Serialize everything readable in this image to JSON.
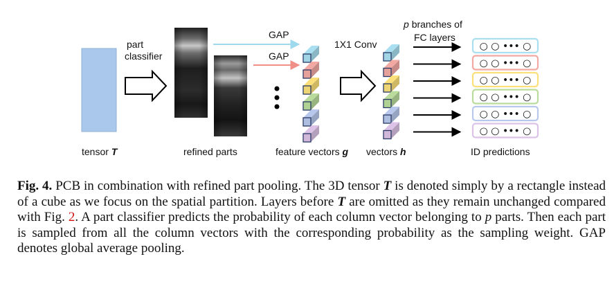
{
  "figure": {
    "label_tensor": "tensor",
    "label_tensor_sym": "T",
    "label_part_classifier_1": "part",
    "label_part_classifier_2": "classifier",
    "label_refined_parts": "refined parts",
    "label_gap_top": "GAP",
    "label_gap_second": "GAP",
    "label_feature_vectors": "feature vectors",
    "label_feature_vectors_sym": "g",
    "label_conv": "1X1 Conv",
    "label_vectors": "vectors",
    "label_vectors_sym": "h",
    "label_branches_sym": "p",
    "label_branches_1": "branches of",
    "label_branches_2": "FC layers",
    "label_id_predictions": "ID predictions",
    "stripe_colors": [
      "#a9dff0",
      "#f2a9a3",
      "#fbe07a",
      "#b9dc9c",
      "#b7c8ec",
      "#dcc2e6"
    ],
    "prediction_glyph": "○ ○ ••• ○"
  },
  "caption": {
    "fig_label": "Fig. 4.",
    "text_1": " PCB in combination with refined part pooling. The 3D tensor ",
    "sym_T1": "T",
    "text_2": " is denoted simply by a rectangle instead of a cube as we focus on the spatial partition. Layers before ",
    "sym_T2": "T",
    "text_3": " are omitted as they remain unchanged compared with Fig. ",
    "fig_ref": "2",
    "text_4": ". A part classifier predicts the probability of each column vector belonging to ",
    "sym_p": "p",
    "text_5": " parts. Then each part is sampled from all the column vectors with the corresponding probability as the sampling weight. GAP denotes global average pooling."
  }
}
